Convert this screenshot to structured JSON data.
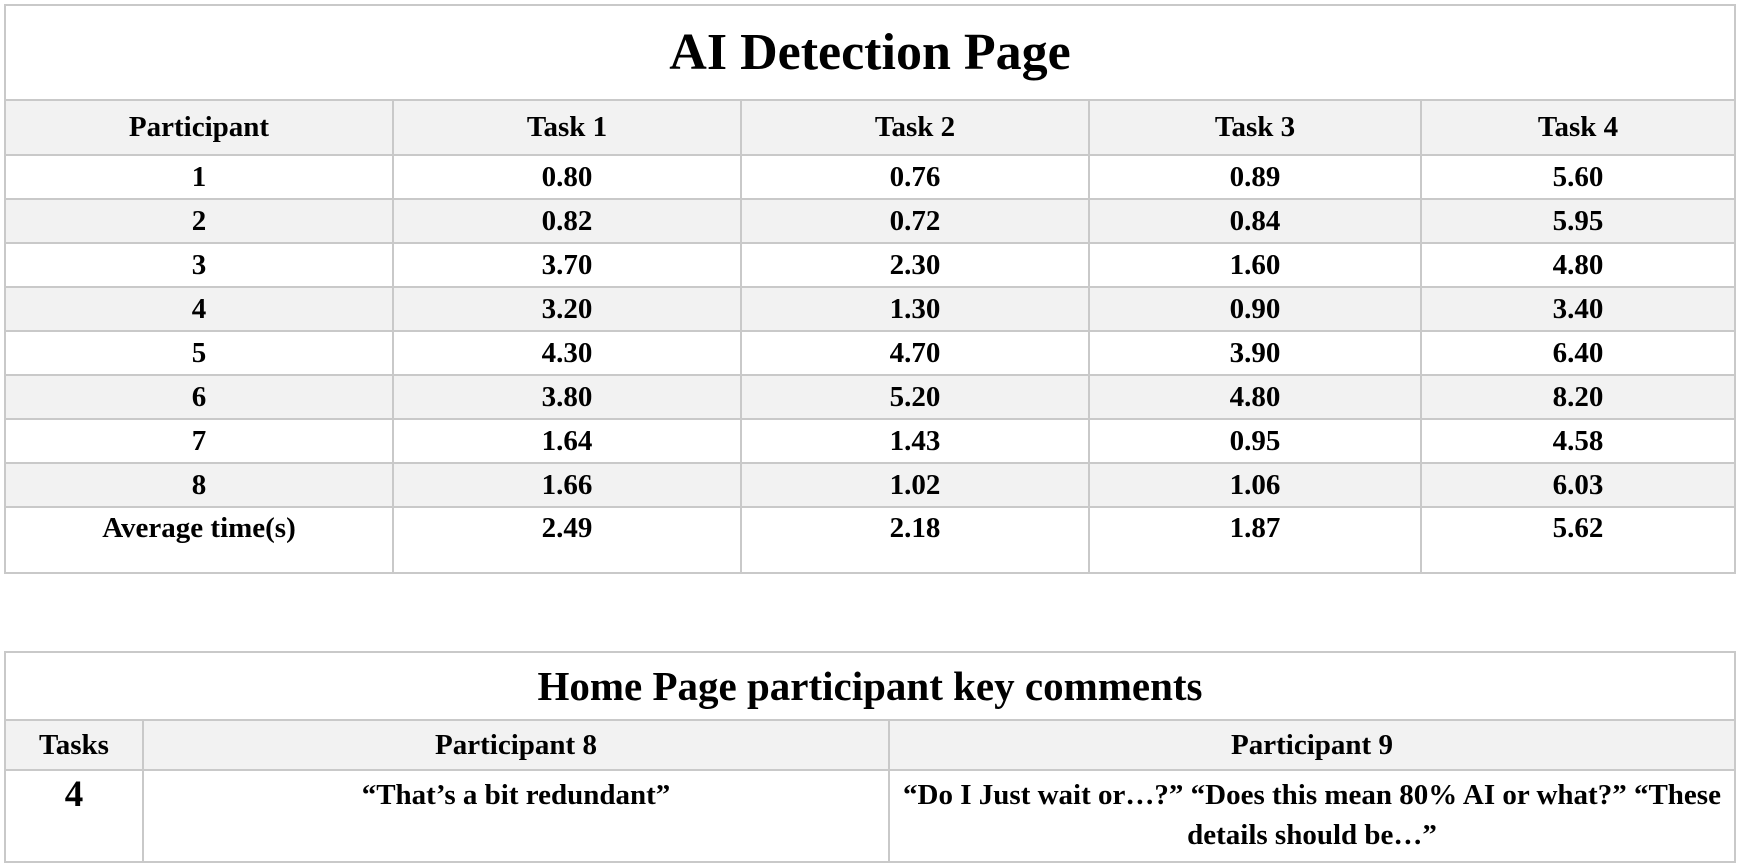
{
  "detection": {
    "title": "AI Detection Page",
    "headers": [
      "Participant",
      "Task 1",
      "Task 2",
      "Task 3",
      "Task 4"
    ],
    "rows": [
      [
        "1",
        "0.80",
        "0.76",
        "0.89",
        "5.60"
      ],
      [
        "2",
        "0.82",
        "0.72",
        "0.84",
        "5.95"
      ],
      [
        "3",
        "3.70",
        "2.30",
        "1.60",
        "4.80"
      ],
      [
        "4",
        "3.20",
        "1.30",
        "0.90",
        "3.40"
      ],
      [
        "5",
        "4.30",
        "4.70",
        "3.90",
        "6.40"
      ],
      [
        "6",
        "3.80",
        "5.20",
        "4.80",
        "8.20"
      ],
      [
        "7",
        "1.64",
        "1.43",
        "0.95",
        "4.58"
      ],
      [
        "8",
        "1.66",
        "1.02",
        "1.06",
        "6.03"
      ]
    ],
    "average": [
      "Average time(s)",
      "2.49",
      "2.18",
      "1.87",
      "5.62"
    ]
  },
  "comments": {
    "title": "Home Page participant key comments",
    "headers": [
      "Tasks",
      "Participant 8",
      "Participant 9"
    ],
    "row": {
      "task": "4",
      "p8": "“That’s a bit redundant”",
      "p9": "“Do I Just wait or…?” “Does this mean 80% AI or what?” “These details should be…”"
    }
  }
}
